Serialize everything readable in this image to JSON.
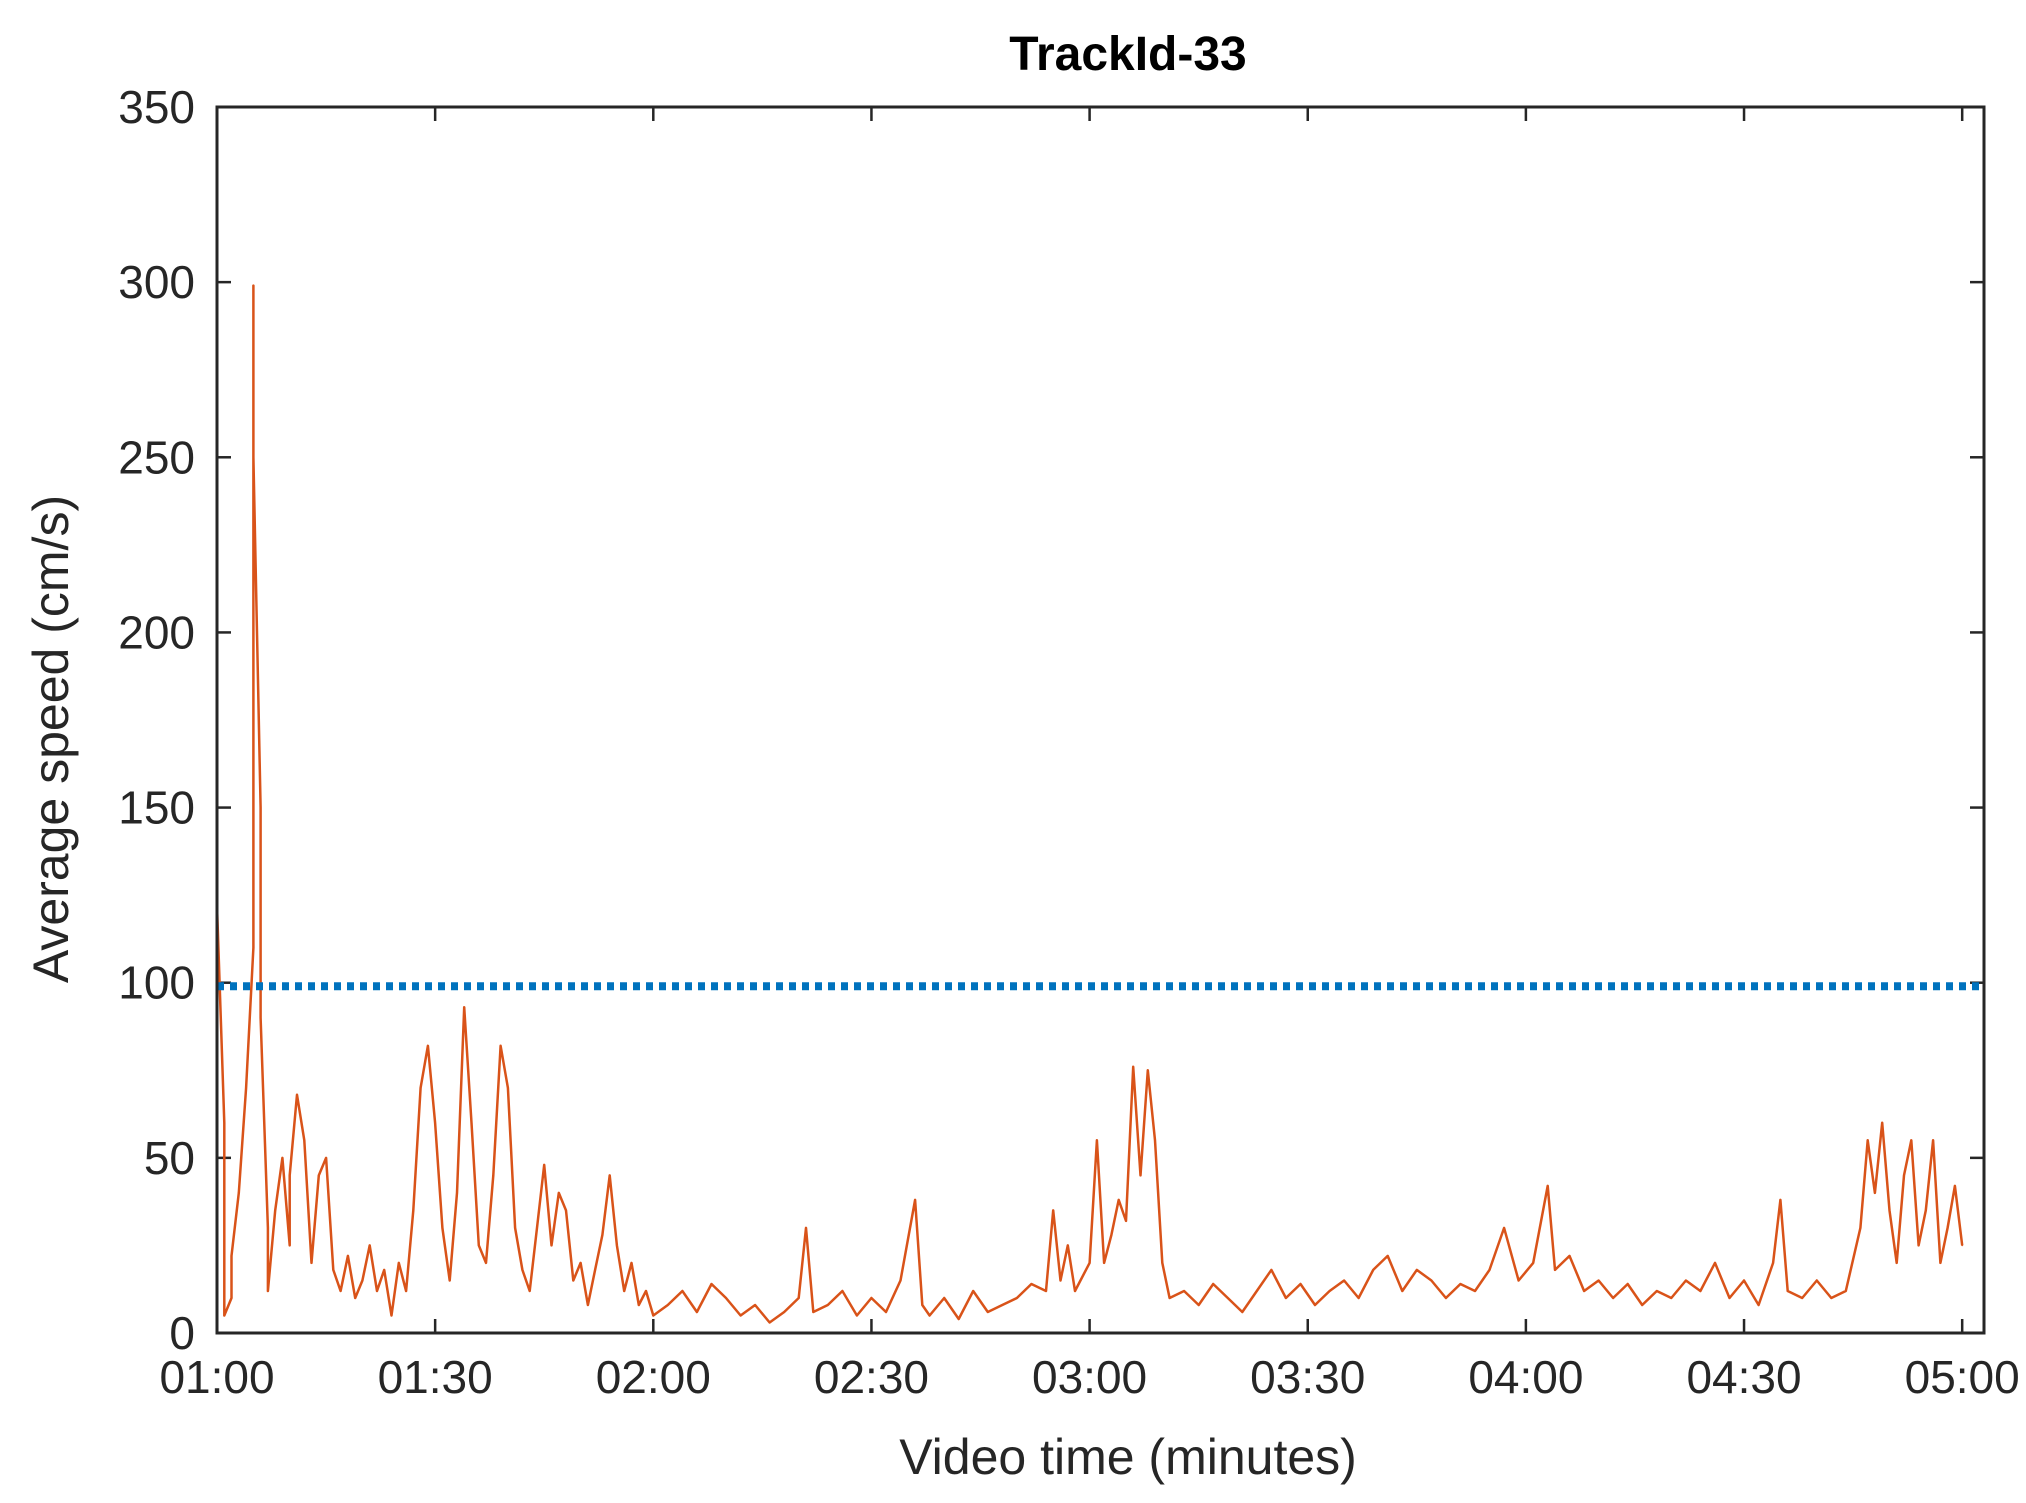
{
  "chart_data": {
    "type": "line",
    "title": "TrackId-33",
    "xlabel": "Video time (minutes)",
    "ylabel": "Average speed (cm/s)",
    "xlim": [
      "01:00",
      "05:03"
    ],
    "ylim": [
      0,
      350
    ],
    "x_ticks": [
      "01:00",
      "01:30",
      "02:00",
      "02:30",
      "03:00",
      "03:30",
      "04:00",
      "04:30",
      "05:00"
    ],
    "y_ticks": [
      0,
      50,
      100,
      150,
      200,
      250,
      300,
      350
    ],
    "grid": false,
    "legend": "none",
    "series": [
      {
        "color": "#D95319",
        "points": [
          [
            "01:00",
            0
          ],
          [
            "01:00",
            122
          ],
          [
            "01:01",
            60
          ],
          [
            "01:01",
            8
          ],
          [
            "01:01",
            5
          ],
          [
            "01:02",
            10
          ],
          [
            "01:02",
            22
          ],
          [
            "01:03",
            40
          ],
          [
            "01:04",
            70
          ],
          [
            "01:05",
            110
          ],
          [
            "01:05",
            299
          ],
          [
            "01:05",
            250
          ],
          [
            "01:06",
            150
          ],
          [
            "01:06",
            90
          ],
          [
            "01:07",
            30
          ],
          [
            "01:07",
            12
          ],
          [
            "01:08",
            35
          ],
          [
            "01:09",
            50
          ],
          [
            "01:10",
            25
          ],
          [
            "01:10",
            45
          ],
          [
            "01:11",
            68
          ],
          [
            "01:12",
            55
          ],
          [
            "01:13",
            20
          ],
          [
            "01:14",
            45
          ],
          [
            "01:15",
            50
          ],
          [
            "01:16",
            18
          ],
          [
            "01:17",
            12
          ],
          [
            "01:18",
            22
          ],
          [
            "01:19",
            10
          ],
          [
            "01:20",
            15
          ],
          [
            "01:21",
            25
          ],
          [
            "01:22",
            12
          ],
          [
            "01:23",
            18
          ],
          [
            "01:24",
            5
          ],
          [
            "01:25",
            20
          ],
          [
            "01:26",
            12
          ],
          [
            "01:27",
            35
          ],
          [
            "01:28",
            70
          ],
          [
            "01:29",
            82
          ],
          [
            "01:30",
            60
          ],
          [
            "01:31",
            30
          ],
          [
            "01:32",
            15
          ],
          [
            "01:33",
            40
          ],
          [
            "01:34",
            93
          ],
          [
            "01:35",
            60
          ],
          [
            "01:36",
            25
          ],
          [
            "01:37",
            20
          ],
          [
            "01:38",
            45
          ],
          [
            "01:39",
            82
          ],
          [
            "01:40",
            70
          ],
          [
            "01:41",
            30
          ],
          [
            "01:42",
            18
          ],
          [
            "01:43",
            12
          ],
          [
            "01:44",
            30
          ],
          [
            "01:45",
            48
          ],
          [
            "01:46",
            25
          ],
          [
            "01:47",
            40
          ],
          [
            "01:48",
            35
          ],
          [
            "01:49",
            15
          ],
          [
            "01:50",
            20
          ],
          [
            "01:51",
            8
          ],
          [
            "01:52",
            18
          ],
          [
            "01:53",
            28
          ],
          [
            "01:54",
            45
          ],
          [
            "01:55",
            25
          ],
          [
            "01:56",
            12
          ],
          [
            "01:57",
            20
          ],
          [
            "01:58",
            8
          ],
          [
            "01:59",
            12
          ],
          [
            "02:00",
            5
          ],
          [
            "02:02",
            8
          ],
          [
            "02:04",
            12
          ],
          [
            "02:06",
            6
          ],
          [
            "02:08",
            14
          ],
          [
            "02:10",
            10
          ],
          [
            "02:12",
            5
          ],
          [
            "02:14",
            8
          ],
          [
            "02:16",
            3
          ],
          [
            "02:18",
            6
          ],
          [
            "02:20",
            10
          ],
          [
            "02:21",
            30
          ],
          [
            "02:22",
            6
          ],
          [
            "02:24",
            8
          ],
          [
            "02:26",
            12
          ],
          [
            "02:28",
            5
          ],
          [
            "02:30",
            10
          ],
          [
            "02:32",
            6
          ],
          [
            "02:34",
            15
          ],
          [
            "02:36",
            38
          ],
          [
            "02:37",
            8
          ],
          [
            "02:38",
            5
          ],
          [
            "02:40",
            10
          ],
          [
            "02:42",
            4
          ],
          [
            "02:44",
            12
          ],
          [
            "02:46",
            6
          ],
          [
            "02:48",
            8
          ],
          [
            "02:50",
            10
          ],
          [
            "02:52",
            14
          ],
          [
            "02:54",
            12
          ],
          [
            "02:55",
            35
          ],
          [
            "02:56",
            15
          ],
          [
            "02:57",
            25
          ],
          [
            "02:58",
            12
          ],
          [
            "03:00",
            20
          ],
          [
            "03:01",
            55
          ],
          [
            "03:02",
            20
          ],
          [
            "03:03",
            28
          ],
          [
            "03:04",
            38
          ],
          [
            "03:05",
            32
          ],
          [
            "03:06",
            76
          ],
          [
            "03:07",
            45
          ],
          [
            "03:08",
            75
          ],
          [
            "03:09",
            55
          ],
          [
            "03:10",
            20
          ],
          [
            "03:11",
            10
          ],
          [
            "03:13",
            12
          ],
          [
            "03:15",
            8
          ],
          [
            "03:17",
            14
          ],
          [
            "03:19",
            10
          ],
          [
            "03:21",
            6
          ],
          [
            "03:23",
            12
          ],
          [
            "03:25",
            18
          ],
          [
            "03:27",
            10
          ],
          [
            "03:29",
            14
          ],
          [
            "03:31",
            8
          ],
          [
            "03:33",
            12
          ],
          [
            "03:35",
            15
          ],
          [
            "03:37",
            10
          ],
          [
            "03:39",
            18
          ],
          [
            "03:41",
            22
          ],
          [
            "03:43",
            12
          ],
          [
            "03:45",
            18
          ],
          [
            "03:47",
            15
          ],
          [
            "03:49",
            10
          ],
          [
            "03:51",
            14
          ],
          [
            "03:53",
            12
          ],
          [
            "03:55",
            18
          ],
          [
            "03:57",
            30
          ],
          [
            "03:59",
            15
          ],
          [
            "04:01",
            20
          ],
          [
            "04:03",
            42
          ],
          [
            "04:04",
            18
          ],
          [
            "04:06",
            22
          ],
          [
            "04:08",
            12
          ],
          [
            "04:10",
            15
          ],
          [
            "04:12",
            10
          ],
          [
            "04:14",
            14
          ],
          [
            "04:16",
            8
          ],
          [
            "04:18",
            12
          ],
          [
            "04:20",
            10
          ],
          [
            "04:22",
            15
          ],
          [
            "04:24",
            12
          ],
          [
            "04:26",
            20
          ],
          [
            "04:28",
            10
          ],
          [
            "04:30",
            15
          ],
          [
            "04:32",
            8
          ],
          [
            "04:34",
            20
          ],
          [
            "04:35",
            38
          ],
          [
            "04:36",
            12
          ],
          [
            "04:38",
            10
          ],
          [
            "04:40",
            15
          ],
          [
            "04:42",
            10
          ],
          [
            "04:44",
            12
          ],
          [
            "04:46",
            30
          ],
          [
            "04:47",
            55
          ],
          [
            "04:48",
            40
          ],
          [
            "04:49",
            60
          ],
          [
            "04:50",
            35
          ],
          [
            "04:51",
            20
          ],
          [
            "04:52",
            45
          ],
          [
            "04:53",
            55
          ],
          [
            "04:54",
            25
          ],
          [
            "04:55",
            35
          ],
          [
            "04:56",
            55
          ],
          [
            "04:57",
            20
          ],
          [
            "04:58",
            30
          ],
          [
            "04:59",
            42
          ],
          [
            "05:00",
            25
          ]
        ]
      },
      {
        "color": "#0072BD",
        "style": "dotted",
        "points": [
          [
            "01:00",
            99
          ],
          [
            "05:00",
            99
          ]
        ]
      }
    ]
  }
}
